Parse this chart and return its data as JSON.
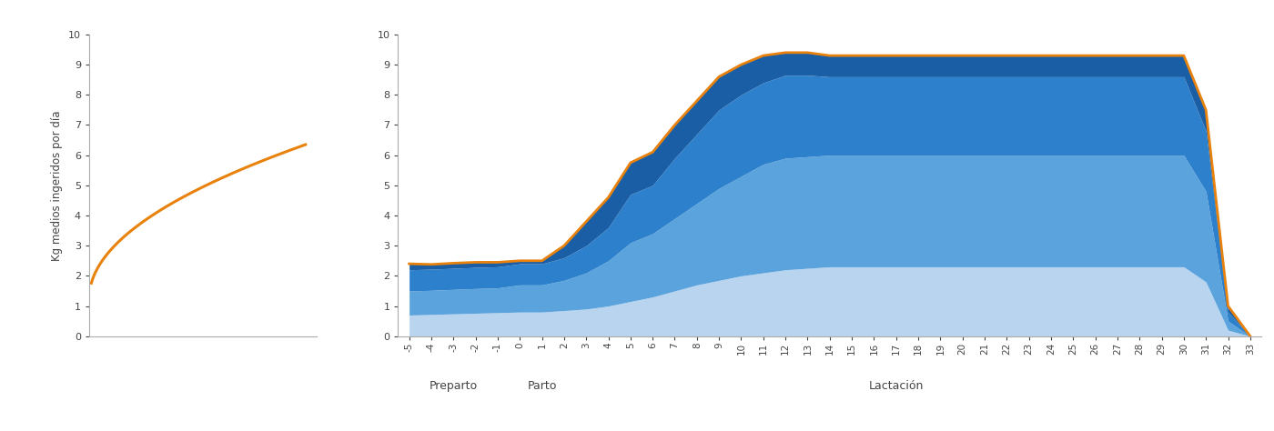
{
  "ylabel": "Kg medios ingeridos por día",
  "orange_color": "#E8820C",
  "blue_dark": "#1A5EA6",
  "blue_mid": "#2D80CB",
  "blue_light": "#5BA3DC",
  "blue_vlight": "#B8D4EE",
  "x_ticks": [
    -5,
    -4,
    -3,
    -2,
    -1,
    0,
    1,
    2,
    3,
    4,
    5,
    6,
    7,
    8,
    9,
    10,
    11,
    12,
    13,
    14,
    15,
    16,
    17,
    18,
    19,
    20,
    21,
    22,
    23,
    24,
    25,
    26,
    27,
    28,
    29,
    30,
    31,
    32,
    33
  ],
  "x_tick_labels": [
    "-5",
    "-4",
    "-3",
    "-2",
    "-1",
    "0",
    "1",
    "2",
    "3",
    "4",
    "5",
    "6",
    "7",
    "8",
    "9",
    "10",
    "11",
    "12",
    "13",
    "14",
    "15",
    "16",
    "17",
    "18",
    "19",
    "20",
    "21",
    "22",
    "23",
    "24",
    "25",
    "26",
    "27",
    "28",
    "29",
    "30",
    "31",
    "32",
    "33"
  ],
  "section_labels": [
    "Preparto",
    "Parto",
    "Lactación"
  ],
  "background_color": "#ffffff",
  "orange_y": [
    2.4,
    2.38,
    2.42,
    2.45,
    2.45,
    2.5,
    2.5,
    3.0,
    3.8,
    4.6,
    5.75,
    6.1,
    7.0,
    7.8,
    8.6,
    9.0,
    9.3,
    9.4,
    9.4,
    9.3,
    9.3,
    9.3,
    9.3,
    9.3,
    9.3,
    9.3,
    9.3,
    9.3,
    9.3,
    9.3,
    9.3,
    9.3,
    9.3,
    9.3,
    9.3,
    9.3,
    7.5,
    1.0,
    0.0
  ],
  "band1_top": [
    0.7,
    0.72,
    0.74,
    0.76,
    0.78,
    0.8,
    0.8,
    0.85,
    0.9,
    1.0,
    1.15,
    1.3,
    1.5,
    1.7,
    1.85,
    2.0,
    2.1,
    2.2,
    2.25,
    2.3,
    2.3,
    2.3,
    2.3,
    2.3,
    2.3,
    2.3,
    2.3,
    2.3,
    2.3,
    2.3,
    2.3,
    2.3,
    2.3,
    2.3,
    2.3,
    2.3,
    1.8,
    0.2,
    0.0
  ],
  "band2_top": [
    1.5,
    1.52,
    1.55,
    1.58,
    1.6,
    1.7,
    1.7,
    1.85,
    2.1,
    2.5,
    3.1,
    3.4,
    3.9,
    4.4,
    4.9,
    5.3,
    5.7,
    5.9,
    5.95,
    6.0,
    6.0,
    6.0,
    6.0,
    6.0,
    6.0,
    6.0,
    6.0,
    6.0,
    6.0,
    6.0,
    6.0,
    6.0,
    6.0,
    6.0,
    6.0,
    6.0,
    4.8,
    0.5,
    0.0
  ],
  "band3_top": [
    2.2,
    2.22,
    2.25,
    2.28,
    2.3,
    2.4,
    2.4,
    2.6,
    3.0,
    3.6,
    4.7,
    5.0,
    5.9,
    6.7,
    7.5,
    8.0,
    8.4,
    8.65,
    8.65,
    8.6,
    8.6,
    8.6,
    8.6,
    8.6,
    8.6,
    8.6,
    8.6,
    8.6,
    8.6,
    8.6,
    8.6,
    8.6,
    8.6,
    8.6,
    8.6,
    8.6,
    6.8,
    0.8,
    0.0
  ]
}
